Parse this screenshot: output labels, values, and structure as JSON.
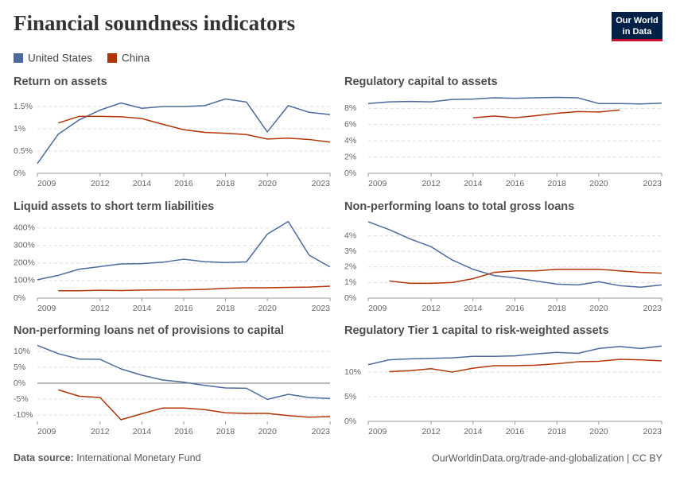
{
  "title": "Financial soundness indicators",
  "logo": [
    "Our World",
    "in Data"
  ],
  "source_label": "Data source:",
  "source": "International Monetary Fund",
  "url_license": "OurWorldinData.org/trade-and-globalization | CC BY",
  "chart_data": [
    {
      "type": "line",
      "title": "Return on assets",
      "x": [
        2009,
        2010,
        2011,
        2012,
        2013,
        2014,
        2015,
        2016,
        2017,
        2018,
        2019,
        2020,
        2021,
        2022,
        2023
      ],
      "xlim": [
        2009,
        2023
      ],
      "xticks": [
        2009,
        2012,
        2014,
        2016,
        2018,
        2020,
        2023
      ],
      "ylim": [
        0,
        1.75
      ],
      "yticks": [
        {
          "value": 0,
          "label": "0%"
        },
        {
          "value": 0.5,
          "label": "0.5%"
        },
        {
          "value": 1,
          "label": "1%"
        },
        {
          "value": 1.5,
          "label": "1.5%"
        }
      ],
      "grid": true,
      "series": [
        {
          "name": "United States",
          "color": "#4c6a9c",
          "values": [
            0.22,
            0.88,
            1.2,
            1.42,
            1.58,
            1.46,
            1.5,
            1.5,
            1.52,
            1.67,
            1.6,
            0.93,
            1.52,
            1.37,
            1.32
          ]
        },
        {
          "name": "China",
          "color": "#b13507",
          "values": [
            null,
            1.13,
            1.28,
            1.28,
            1.27,
            1.23,
            1.1,
            0.98,
            0.92,
            0.9,
            0.87,
            0.77,
            0.79,
            0.76,
            0.7
          ]
        }
      ]
    },
    {
      "type": "line",
      "title": "Regulatory capital to assets",
      "x": [
        2009,
        2010,
        2011,
        2012,
        2013,
        2014,
        2015,
        2016,
        2017,
        2018,
        2019,
        2020,
        2021,
        2022,
        2023
      ],
      "xlim": [
        2009,
        2023
      ],
      "xticks": [
        2009,
        2012,
        2014,
        2016,
        2018,
        2020,
        2023
      ],
      "ylim": [
        0,
        9.6
      ],
      "yticks": [
        {
          "value": 0,
          "label": "0%"
        },
        {
          "value": 2,
          "label": "2%"
        },
        {
          "value": 4,
          "label": "4%"
        },
        {
          "value": 6,
          "label": "6%"
        },
        {
          "value": 8,
          "label": "8%"
        }
      ],
      "grid": true,
      "series": [
        {
          "name": "United States",
          "color": "#4c6a9c",
          "values": [
            8.6,
            8.8,
            8.85,
            8.8,
            9.1,
            9.15,
            9.3,
            9.25,
            9.3,
            9.35,
            9.3,
            8.6,
            8.6,
            8.55,
            8.65
          ]
        },
        {
          "name": "China",
          "color": "#b13507",
          "values": [
            null,
            null,
            null,
            null,
            null,
            6.85,
            7.05,
            6.85,
            7.1,
            7.4,
            7.6,
            7.55,
            7.8,
            null,
            null
          ]
        }
      ]
    },
    {
      "type": "line",
      "title": "Liquid assets to short term liabilities",
      "x": [
        2009,
        2010,
        2011,
        2012,
        2013,
        2014,
        2015,
        2016,
        2017,
        2018,
        2019,
        2020,
        2021,
        2022,
        2023
      ],
      "xlim": [
        2009,
        2023
      ],
      "xticks": [
        2009,
        2012,
        2014,
        2016,
        2018,
        2020,
        2023
      ],
      "ylim": [
        0,
        440
      ],
      "yticks": [
        {
          "value": 0,
          "label": "0%"
        },
        {
          "value": 100,
          "label": "100%"
        },
        {
          "value": 200,
          "label": "200%"
        },
        {
          "value": 300,
          "label": "300%"
        },
        {
          "value": 400,
          "label": "400%"
        }
      ],
      "grid": true,
      "series": [
        {
          "name": "United States",
          "color": "#4c6a9c",
          "values": [
            105,
            130,
            165,
            180,
            195,
            197,
            205,
            222,
            208,
            203,
            207,
            365,
            437,
            245,
            178
          ]
        },
        {
          "name": "China",
          "color": "#b13507",
          "values": [
            null,
            42,
            42,
            45,
            43,
            46,
            47,
            47,
            50,
            56,
            59,
            59,
            61,
            63,
            68
          ]
        }
      ]
    },
    {
      "type": "line",
      "title": "Non-performing loans to total gross loans",
      "x": [
        2009,
        2010,
        2011,
        2012,
        2013,
        2014,
        2015,
        2016,
        2017,
        2018,
        2019,
        2020,
        2021,
        2022,
        2023
      ],
      "xlim": [
        2009,
        2023
      ],
      "xticks": [
        2009,
        2012,
        2014,
        2016,
        2018,
        2020,
        2023
      ],
      "ylim": [
        0,
        4.95
      ],
      "yticks": [
        {
          "value": 0,
          "label": "0%"
        },
        {
          "value": 1,
          "label": "1%"
        },
        {
          "value": 2,
          "label": "2%"
        },
        {
          "value": 3,
          "label": "3%"
        },
        {
          "value": 4,
          "label": "4%"
        }
      ],
      "grid": true,
      "series": [
        {
          "name": "United States",
          "color": "#4c6a9c",
          "values": [
            4.9,
            4.4,
            3.8,
            3.3,
            2.45,
            1.85,
            1.45,
            1.3,
            1.1,
            0.9,
            0.85,
            1.05,
            0.8,
            0.7,
            0.85
          ]
        },
        {
          "name": "China",
          "color": "#b13507",
          "values": [
            null,
            1.1,
            0.95,
            0.95,
            1.0,
            1.25,
            1.65,
            1.75,
            1.75,
            1.85,
            1.85,
            1.85,
            1.75,
            1.65,
            1.6
          ]
        }
      ]
    },
    {
      "type": "line",
      "title": "Non-performing loans net of provisions to capital",
      "x": [
        2009,
        2010,
        2011,
        2012,
        2013,
        2014,
        2015,
        2016,
        2017,
        2018,
        2019,
        2020,
        2021,
        2022,
        2023
      ],
      "xlim": [
        2009,
        2023
      ],
      "xticks": [
        2009,
        2012,
        2014,
        2016,
        2018,
        2020,
        2023
      ],
      "ylim": [
        -12,
        12
      ],
      "yticks": [
        {
          "value": -10,
          "label": "-10%"
        },
        {
          "value": -5,
          "label": "-5%"
        },
        {
          "value": 0,
          "label": "0%"
        },
        {
          "value": 5,
          "label": "5%"
        },
        {
          "value": 10,
          "label": "10%"
        }
      ],
      "grid": true,
      "series": [
        {
          "name": "United States",
          "color": "#4c6a9c",
          "values": [
            11.9,
            9.3,
            7.6,
            7.5,
            4.5,
            2.5,
            1.0,
            0.3,
            -0.7,
            -1.5,
            -1.6,
            -5.1,
            -3.5,
            -4.5,
            -4.8
          ]
        },
        {
          "name": "China",
          "color": "#b13507",
          "values": [
            null,
            -2.1,
            -4.1,
            -4.5,
            -11.5,
            -9.6,
            -7.8,
            -7.8,
            -8.3,
            -9.3,
            -9.5,
            -9.5,
            -10.2,
            -10.7,
            -10.5
          ]
        }
      ]
    },
    {
      "type": "line",
      "title": "Regulatory Tier 1 capital to risk-weighted assets",
      "x": [
        2009,
        2010,
        2011,
        2012,
        2013,
        2014,
        2015,
        2016,
        2017,
        2018,
        2019,
        2020,
        2021,
        2022,
        2023
      ],
      "xlim": [
        2009,
        2023
      ],
      "xticks": [
        2009,
        2012,
        2014,
        2016,
        2018,
        2020,
        2023
      ],
      "ylim": [
        0,
        15.5
      ],
      "yticks": [
        {
          "value": 0,
          "label": "0%"
        },
        {
          "value": 5,
          "label": "5%"
        },
        {
          "value": 10,
          "label": "10%"
        }
      ],
      "grid": true,
      "series": [
        {
          "name": "United States",
          "color": "#4c6a9c",
          "values": [
            11.5,
            12.5,
            12.7,
            12.8,
            12.9,
            13.2,
            13.2,
            13.3,
            13.7,
            14.0,
            13.8,
            14.8,
            15.2,
            14.8,
            15.3
          ]
        },
        {
          "name": "China",
          "color": "#b13507",
          "values": [
            null,
            10.1,
            10.3,
            10.7,
            10.0,
            10.8,
            11.3,
            11.3,
            11.4,
            11.7,
            12.1,
            12.2,
            12.6,
            12.5,
            12.3
          ]
        }
      ]
    }
  ]
}
